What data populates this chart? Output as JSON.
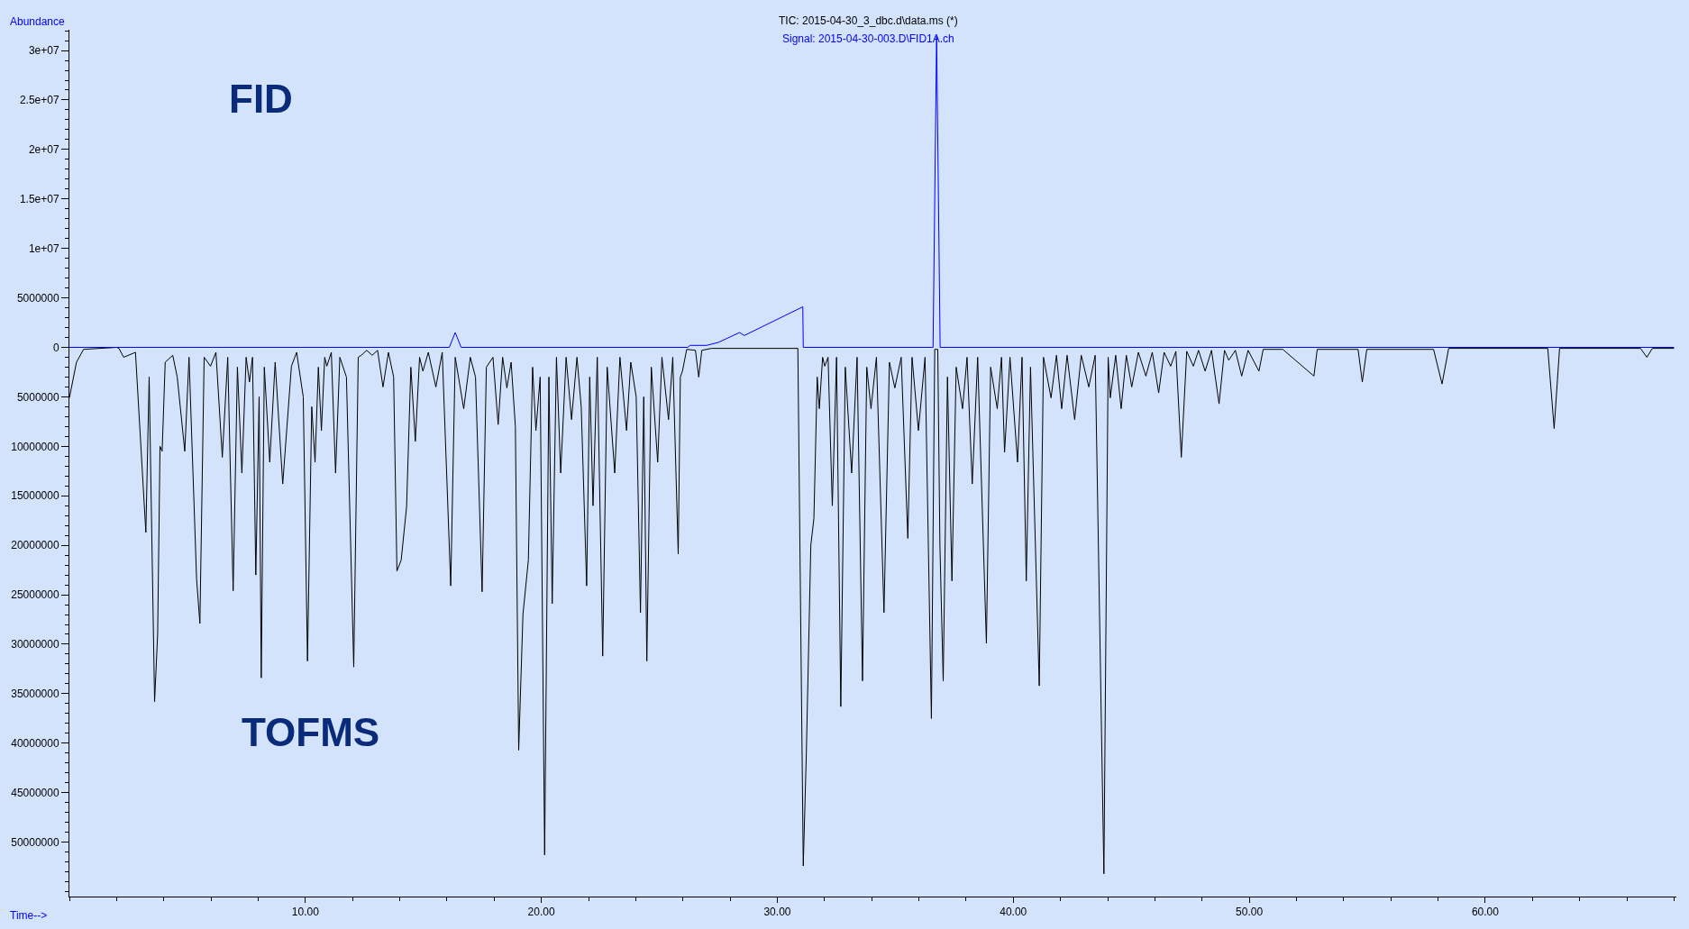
{
  "chart_data": {
    "type": "line",
    "xlabel": "Time-->",
    "ylabel": "Abundance",
    "annotations": [
      "FID",
      "TOFMS"
    ],
    "xlim": [
      0,
      68.1
    ],
    "ylim": [
      -55500000,
      32100000
    ],
    "xticks": [
      {
        "value": 10,
        "label": "10.00"
      },
      {
        "value": 20,
        "label": "20.00"
      },
      {
        "value": 30,
        "label": "30.00"
      },
      {
        "value": 40,
        "label": "40.00"
      },
      {
        "value": 50,
        "label": "50.00"
      },
      {
        "value": 60,
        "label": "60.00"
      }
    ],
    "yticks": [
      {
        "value": 30000000,
        "label": "3e+07"
      },
      {
        "value": 25000000,
        "label": "2.5e+07"
      },
      {
        "value": 20000000,
        "label": "2e+07"
      },
      {
        "value": 15000000,
        "label": "1.5e+07"
      },
      {
        "value": 10000000,
        "label": "1e+07"
      },
      5000000,
      0,
      {
        "value": -5000000,
        "label": "5000000"
      },
      {
        "value": -10000000,
        "label": "10000000"
      },
      {
        "value": -15000000,
        "label": "15000000"
      },
      {
        "value": -20000000,
        "label": "20000000"
      },
      {
        "value": -25000000,
        "label": "25000000"
      },
      {
        "value": -30000000,
        "label": "30000000"
      },
      {
        "value": -35000000,
        "label": "35000000"
      },
      {
        "value": -40000000,
        "label": "40000000"
      },
      {
        "value": -45000000,
        "label": "45000000"
      },
      {
        "value": -50000000,
        "label": "50000000"
      }
    ],
    "grid": false,
    "legend": false,
    "marker": "none",
    "line_style": "solid",
    "series": [
      {
        "name": "TIC: 2015-04-30_3_dbc.d\\data.ms (*)",
        "color": "#000000",
        "x": [
          0.0,
          0.3,
          0.6,
          2.0,
          2.1,
          2.3,
          2.8,
          3.24,
          3.38,
          3.61,
          3.74,
          3.84,
          3.93,
          4.06,
          4.38,
          4.57,
          4.89,
          5.07,
          5.39,
          5.53,
          5.71,
          5.98,
          6.21,
          6.48,
          6.71,
          6.94,
          7.12,
          7.31,
          7.49,
          7.63,
          7.76,
          7.9,
          8.04,
          8.13,
          8.26,
          8.49,
          8.72,
          9.04,
          9.22,
          9.41,
          9.63,
          9.91,
          10.09,
          10.27,
          10.41,
          10.55,
          10.68,
          10.82,
          10.91,
          11.1,
          11.28,
          11.46,
          11.74,
          12.05,
          12.24,
          12.37,
          12.6,
          12.83,
          13.06,
          13.29,
          13.52,
          13.74,
          13.88,
          14.06,
          14.29,
          14.47,
          14.66,
          14.84,
          14.98,
          15.21,
          15.53,
          15.8,
          16.16,
          16.35,
          16.71,
          16.99,
          17.21,
          17.49,
          17.67,
          17.95,
          18.17,
          18.36,
          18.54,
          18.72,
          18.9,
          19.04,
          19.22,
          19.45,
          19.63,
          19.77,
          19.95,
          20.14,
          20.32,
          20.46,
          20.64,
          20.82,
          21.05,
          21.28,
          21.51,
          21.69,
          21.92,
          22.05,
          22.19,
          22.37,
          22.6,
          22.79,
          23.11,
          23.33,
          23.61,
          23.79,
          24.02,
          24.2,
          24.34,
          24.47,
          24.66,
          24.93,
          25.11,
          25.39,
          25.57,
          25.8,
          25.89,
          25.98,
          26.16,
          26.53,
          26.67,
          26.8,
          27.21,
          30.87,
          31.1,
          31.23,
          31.42,
          31.55,
          31.69,
          31.78,
          31.92,
          32.01,
          32.15,
          32.33,
          32.51,
          32.69,
          32.88,
          33.15,
          33.38,
          33.61,
          33.79,
          33.97,
          34.2,
          34.52,
          34.75,
          34.98,
          35.25,
          35.53,
          35.71,
          35.98,
          36.26,
          36.53,
          36.67,
          36.8,
          36.89,
          37.03,
          37.21,
          37.4,
          37.58,
          37.85,
          38.04,
          38.26,
          38.49,
          38.86,
          39.04,
          39.32,
          39.5,
          39.63,
          39.86,
          40.18,
          40.37,
          40.55,
          40.73,
          41.1,
          41.28,
          41.6,
          41.83,
          42.05,
          42.28,
          42.6,
          42.88,
          43.2,
          43.47,
          43.84,
          44.02,
          44.11,
          44.34,
          44.57,
          44.79,
          45.02,
          45.3,
          45.62,
          45.89,
          46.16,
          46.39,
          46.67,
          46.89,
          47.12,
          47.35,
          47.63,
          47.85,
          48.13,
          48.4,
          48.72,
          48.95,
          49.13,
          49.41,
          49.68,
          49.95,
          50.41,
          50.59,
          51.42,
          52.74,
          52.88,
          54.61,
          54.79,
          54.98,
          57.81,
          58.17,
          58.45,
          62.65,
          62.92,
          63.15,
          66.58,
          66.85,
          67.08,
          68.0
        ],
        "values": [
          -5100000,
          -1500000,
          -200000,
          0,
          -100000,
          -1000000,
          -500000,
          -18700000,
          -3000000,
          -35800000,
          -29000000,
          -10000000,
          -10500000,
          -1500000,
          -800000,
          -3000000,
          -10500000,
          -1000000,
          -23400000,
          -27900000,
          -1000000,
          -1900000,
          -500000,
          -11100000,
          -1000000,
          -24600000,
          -2000000,
          -12700000,
          -1000000,
          -3500000,
          -1000000,
          -23000000,
          -5000000,
          -33400000,
          -2000000,
          -11600000,
          -1500000,
          -13800000,
          -8000000,
          -1900000,
          -500000,
          -5000000,
          -31700000,
          -6000000,
          -11600000,
          -2000000,
          -8400000,
          -1000000,
          -1900000,
          -500000,
          -12700000,
          -1000000,
          -3000000,
          -32300000,
          -1000000,
          -800000,
          -300000,
          -800000,
          -300000,
          -4000000,
          -500000,
          -3000000,
          -22600000,
          -21500000,
          -16100000,
          -2000000,
          -9500000,
          -1000000,
          -2400000,
          -500000,
          -4000000,
          -500000,
          -24100000,
          -1000000,
          -6200000,
          -1000000,
          -3000000,
          -24700000,
          -2000000,
          -1000000,
          -7800000,
          -1000000,
          -4100000,
          -1500000,
          -8000000,
          -40700000,
          -27000000,
          -21500000,
          -2000000,
          -8400000,
          -3000000,
          -51300000,
          -3000000,
          -25900000,
          -1000000,
          -12700000,
          -1000000,
          -7300000,
          -1000000,
          -6000000,
          -24100000,
          -3000000,
          -16000000,
          -1000000,
          -31200000,
          -2000000,
          -12700000,
          -1000000,
          -8400000,
          -1500000,
          -5000000,
          -26800000,
          -5000000,
          -31700000,
          -2000000,
          -11600000,
          -1000000,
          -7300000,
          -1000000,
          -20900000,
          -3000000,
          -2400000,
          -200000,
          -300000,
          -3000000,
          -300000,
          -100000,
          -100000,
          -52400000,
          -41000000,
          -20000000,
          -17300000,
          -3000000,
          -6200000,
          -1000000,
          -1900000,
          -1000000,
          -16000000,
          -1000000,
          -36300000,
          -2000000,
          -12700000,
          -1000000,
          -33700000,
          -2000000,
          -6200000,
          -1000000,
          -26800000,
          -1500000,
          -4100000,
          -1000000,
          -19300000,
          -1000000,
          -8400000,
          -1000000,
          -37500000,
          -200000,
          -200000,
          -20000000,
          -33700000,
          -3000000,
          -23600000,
          -2000000,
          -6200000,
          -1000000,
          -13800000,
          -1000000,
          -29900000,
          -2000000,
          -6200000,
          -1000000,
          -10600000,
          -1000000,
          -11600000,
          -1000000,
          -23600000,
          -2000000,
          -34200000,
          -1000000,
          -5100000,
          -800000,
          -6200000,
          -800000,
          -7300000,
          -800000,
          -4000000,
          -800000,
          -53200000,
          -1000000,
          -5100000,
          -800000,
          -6200000,
          -800000,
          -4000000,
          -500000,
          -2900000,
          -500000,
          -4600000,
          -500000,
          -1900000,
          -400000,
          -11100000,
          -400000,
          -1900000,
          -300000,
          -2400000,
          -300000,
          -5700000,
          -300000,
          -1300000,
          -300000,
          -2900000,
          -300000,
          -2400000,
          -200000,
          -200000,
          -2900000,
          -200000,
          -200000,
          -3500000,
          -200000,
          -200000,
          -3700000,
          -100000,
          -100000,
          -8200000,
          -100000,
          -100000,
          -1000000,
          -100000,
          -100000
        ]
      },
      {
        "name": "Signal: 2015-04-30-003.D\\FID1A.ch",
        "color": "#0000ff",
        "x": [
          0.0,
          16.1,
          16.35,
          16.6,
          26.2,
          26.3,
          27.0,
          27.5,
          28.4,
          28.6,
          31.08,
          31.1,
          36.6,
          36.75,
          36.9,
          68.0
        ],
        "values": [
          0,
          0,
          1500000,
          0,
          0,
          200000,
          200000,
          500000,
          1500000,
          1200000,
          4100000,
          0,
          0,
          31500000,
          0,
          0
        ]
      }
    ]
  }
}
